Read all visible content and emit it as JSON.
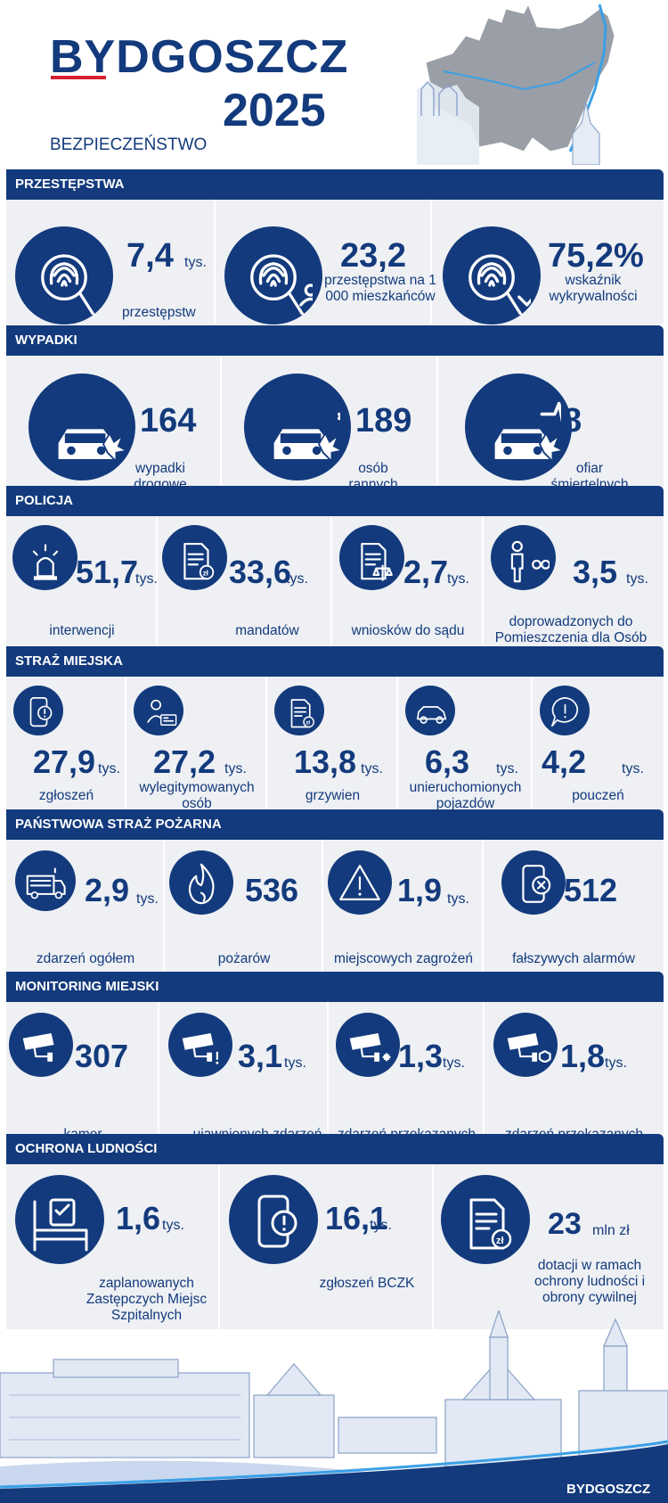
{
  "header": {
    "city": "BYDGOSZCZ",
    "year": "2025",
    "subtitle": "BEZPIECZEŃSTWO"
  },
  "colors": {
    "navy": "#133a7c",
    "panel": "#eef0f4",
    "accent_red": "#d6202f"
  },
  "sections": [
    {
      "title": "PRZESTĘPSTWA",
      "items": [
        {
          "icon": "fingerprint-search-icon",
          "value": "7,4",
          "unit": "tys.",
          "label": "przestępstw"
        },
        {
          "icon": "fingerprint-people-icon",
          "value": "23,2",
          "unit": "",
          "label": "przestępstwa na 1 000 mieszkańców"
        },
        {
          "icon": "fingerprint-check-icon",
          "value": "75,2%",
          "unit": "",
          "label": "wskaźnik wykrywalności"
        }
      ]
    },
    {
      "title": "WYPADKI",
      "items": [
        {
          "icon": "car-crash-icon",
          "value": "164",
          "unit": "",
          "label": "wypadki drogowe"
        },
        {
          "icon": "car-crash-medical-icon",
          "value": "189",
          "unit": "",
          "label": "osób rannych"
        },
        {
          "icon": "car-crash-heartbeat-icon",
          "value": "8",
          "unit": "",
          "label": "ofiar śmiertelnych"
        }
      ]
    },
    {
      "title": "POLICJA",
      "items": [
        {
          "icon": "police-siren-icon",
          "value": "51,7",
          "unit": "tys.",
          "label": "interwencji"
        },
        {
          "icon": "ticket-document-icon",
          "value": "33,6",
          "unit": "tys.",
          "label": "mandatów"
        },
        {
          "icon": "court-document-icon",
          "value": "2,7",
          "unit": "tys.",
          "label": "wniosków do sądu"
        },
        {
          "icon": "detained-person-icon",
          "value": "3,5",
          "unit": "tys.",
          "label": "doprowadzonych do Pomieszczenia dla Osób Zatrzymanych"
        }
      ]
    },
    {
      "title": "STRAŻ MIEJSKA",
      "items": [
        {
          "icon": "phone-alert-icon",
          "value": "27,9",
          "unit": "tys.",
          "label": "zgłoszeń"
        },
        {
          "icon": "id-card-person-icon",
          "value": "27,2",
          "unit": "tys.",
          "label": "wylegitymowanych osób"
        },
        {
          "icon": "fine-document-icon",
          "value": "13,8",
          "unit": "tys.",
          "label": "grzywien"
        },
        {
          "icon": "car-immobilized-icon",
          "value": "6,3",
          "unit": "tys.",
          "label": "unieruchomionych pojazdów"
        },
        {
          "icon": "speech-alert-icon",
          "value": "4,2",
          "unit": "tys.",
          "label": "pouczeń"
        }
      ]
    },
    {
      "title": "PAŃSTWOWA STRAŻ POŻARNA",
      "items": [
        {
          "icon": "fire-truck-icon",
          "value": "2,9",
          "unit": "tys.",
          "label": "zdarzeń ogółem"
        },
        {
          "icon": "flame-icon",
          "value": "536",
          "unit": "",
          "label": "pożarów"
        },
        {
          "icon": "warning-triangle-icon",
          "value": "1,9",
          "unit": "tys.",
          "label": "miejscowych zagrożeń"
        },
        {
          "icon": "phone-cancel-icon",
          "value": "512",
          "unit": "",
          "label": "fałszywych alarmów"
        }
      ]
    },
    {
      "title": "MONITORING MIEJSKI",
      "items": [
        {
          "icon": "cctv-camera-icon",
          "value": "307",
          "unit": "",
          "label": "kamer"
        },
        {
          "icon": "cctv-alert-icon",
          "value": "3,1",
          "unit": "tys.",
          "label": "ujawnionych zdarzeń"
        },
        {
          "icon": "cctv-police-icon",
          "value": "1,3",
          "unit": "tys.",
          "label": "zdarzeń przekazanych Policji"
        },
        {
          "icon": "cctv-guard-icon",
          "value": "1,8",
          "unit": "tys.",
          "label": "zdarzeń przekazanych Straży Miejskiej"
        }
      ]
    },
    {
      "title": "OCHRONA LUDNOŚCI",
      "items": [
        {
          "icon": "hospital-bed-icon",
          "value": "1,6",
          "unit": "tys.",
          "label": "zaplanowanych Zastępczych Miejsc Szpitalnych"
        },
        {
          "icon": "phone-alert-icon",
          "value": "16,1",
          "unit": "tys.",
          "label": "zgłoszeń BCZK"
        },
        {
          "icon": "document-money-icon",
          "value": "23",
          "unit": "mln zł",
          "label": "dotacji w ramach ochrony ludności i obrony cywilnej"
        }
      ]
    }
  ],
  "footer": {
    "logo_text": "BYDGOSZCZ"
  }
}
